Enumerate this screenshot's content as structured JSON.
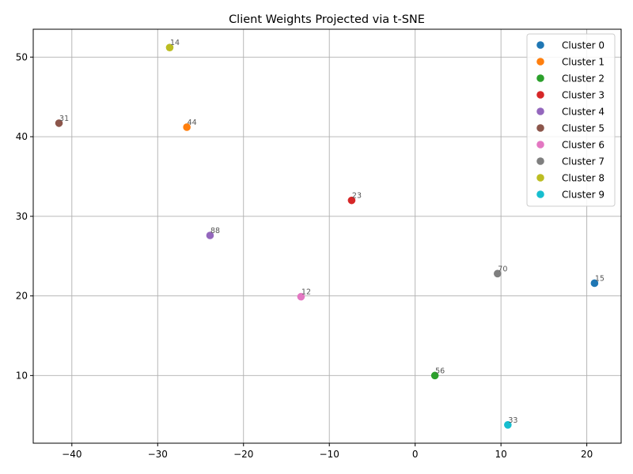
{
  "chart_data": {
    "type": "scatter",
    "title": "Client Weights Projected via t-SNE",
    "xlabel": "",
    "ylabel": "",
    "xlim": [
      -44.5,
      24
    ],
    "ylim": [
      1.5,
      53.5
    ],
    "xticks": [
      -40,
      -30,
      -20,
      -10,
      0,
      10,
      20
    ],
    "yticks": [
      10,
      20,
      30,
      40,
      50
    ],
    "xtick_labels": [
      "−40",
      "−30",
      "−20",
      "−10",
      "0",
      "10",
      "20"
    ],
    "ytick_labels": [
      "10",
      "20",
      "30",
      "40",
      "50"
    ],
    "grid": true,
    "legend_position": "top-right",
    "series": [
      {
        "name": "Cluster 0",
        "color": "#1f77b4",
        "x": 20.9,
        "y": 21.6,
        "label": "15"
      },
      {
        "name": "Cluster 1",
        "color": "#ff7f0e",
        "x": -26.6,
        "y": 41.2,
        "label": "44"
      },
      {
        "name": "Cluster 2",
        "color": "#2ca02c",
        "x": 2.3,
        "y": 10.0,
        "label": "56"
      },
      {
        "name": "Cluster 3",
        "color": "#d62728",
        "x": -7.4,
        "y": 32.0,
        "label": "23"
      },
      {
        "name": "Cluster 4",
        "color": "#9467bd",
        "x": -23.9,
        "y": 27.6,
        "label": "88"
      },
      {
        "name": "Cluster 5",
        "color": "#8c564b",
        "x": -41.5,
        "y": 41.7,
        "label": "31"
      },
      {
        "name": "Cluster 6",
        "color": "#e377c2",
        "x": -13.3,
        "y": 19.9,
        "label": "12"
      },
      {
        "name": "Cluster 7",
        "color": "#7f7f7f",
        "x": 9.6,
        "y": 22.8,
        "label": "70"
      },
      {
        "name": "Cluster 8",
        "color": "#bcbd22",
        "x": -28.6,
        "y": 51.2,
        "label": "14"
      },
      {
        "name": "Cluster 9",
        "color": "#17becf",
        "x": 10.8,
        "y": 3.8,
        "label": "33"
      }
    ]
  }
}
